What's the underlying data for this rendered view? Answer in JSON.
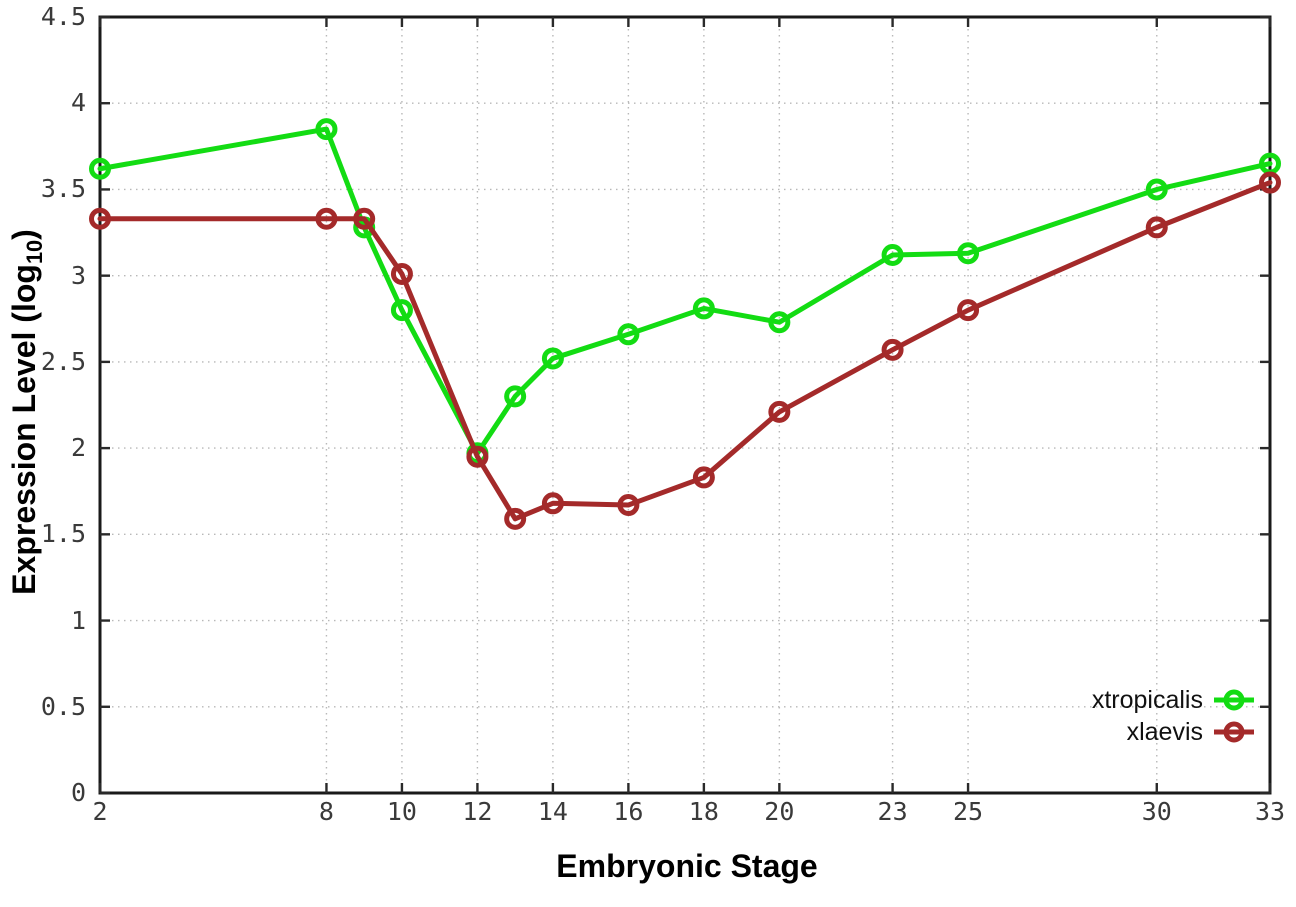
{
  "chart_data": {
    "type": "line",
    "title": "",
    "xlabel": "Embryonic Stage",
    "ylabel": {
      "text": "Expression Level (log",
      "subscript": "10",
      "suffix": ")"
    },
    "xlim": [
      2,
      33
    ],
    "ylim": [
      0,
      4.5
    ],
    "x_ticks": [
      2,
      8,
      10,
      12,
      14,
      16,
      18,
      20,
      23,
      25,
      30,
      33
    ],
    "y_ticks": [
      0,
      0.5,
      1,
      1.5,
      2,
      2.5,
      3,
      3.5,
      4,
      4.5
    ],
    "grid": "dotted",
    "legend_position": "inside-bottom-right",
    "marker_style": "open-circle",
    "x": [
      2,
      8,
      9,
      10,
      12,
      13,
      14,
      16,
      18,
      20,
      23,
      25,
      30,
      33
    ],
    "series": [
      {
        "name": "xtropicalis",
        "color": "#13DC13",
        "values": [
          3.62,
          3.85,
          3.28,
          2.8,
          1.97,
          2.3,
          2.52,
          2.66,
          2.81,
          2.73,
          3.12,
          3.13,
          3.5,
          3.65
        ]
      },
      {
        "name": "xlaevis",
        "color": "#A42A2A",
        "values": [
          3.33,
          3.33,
          3.33,
          3.01,
          1.95,
          1.59,
          1.68,
          1.67,
          1.83,
          2.21,
          2.57,
          2.8,
          3.28,
          3.54
        ]
      }
    ]
  }
}
